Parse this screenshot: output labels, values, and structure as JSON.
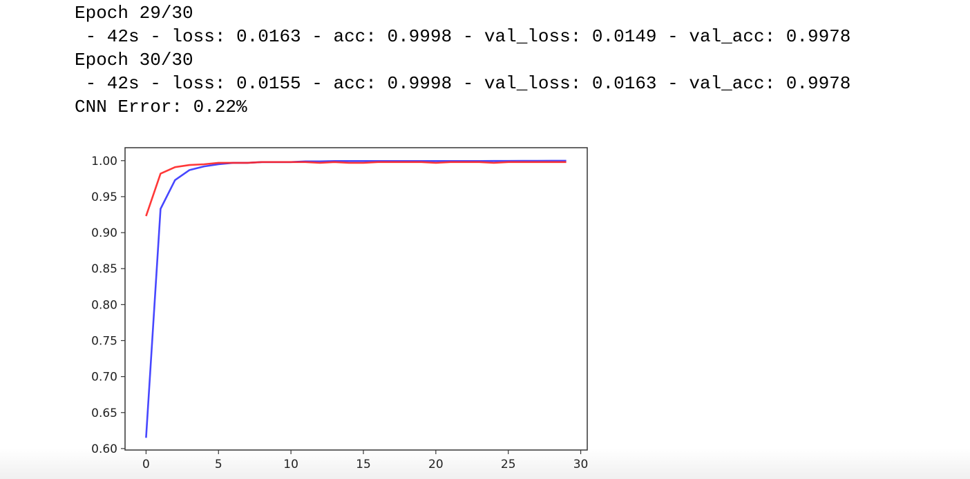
{
  "console": {
    "lines": [
      "Epoch 29/30",
      " - 42s - loss: 0.0163 - acc: 0.9998 - val_loss: 0.0149 - val_acc: 0.9978",
      "Epoch 30/30",
      " - 42s - loss: 0.0155 - acc: 0.9998 - val_loss: 0.0163 - val_acc: 0.9978",
      "CNN Error: 0.22%"
    ]
  },
  "chart_data": {
    "type": "line",
    "xlim": [
      -1.45,
      30.45
    ],
    "ylim": [
      0.598,
      1.018
    ],
    "xticks": [
      0,
      5,
      10,
      15,
      20,
      25,
      30
    ],
    "yticks": [
      0.6,
      0.65,
      0.7,
      0.75,
      0.8,
      0.85,
      0.9,
      0.95,
      1.0
    ],
    "ytick_labels": [
      "0.60",
      "0.65",
      "0.70",
      "0.75",
      "0.80",
      "0.85",
      "0.90",
      "0.95",
      "1.00"
    ],
    "grid": false,
    "series": [
      {
        "color": "#3333ff",
        "x": [
          0,
          1,
          2,
          3,
          4,
          5,
          6,
          7,
          8,
          9,
          10,
          11,
          12,
          13,
          14,
          15,
          16,
          17,
          18,
          19,
          20,
          21,
          22,
          23,
          24,
          25,
          26,
          27,
          28,
          29
        ],
        "values": [
          0.615,
          0.933,
          0.973,
          0.987,
          0.992,
          0.995,
          0.997,
          0.997,
          0.998,
          0.998,
          0.998,
          0.999,
          0.999,
          0.9995,
          0.9995,
          0.9995,
          0.9995,
          0.9995,
          0.9995,
          0.9995,
          0.9995,
          0.9995,
          0.9995,
          0.9995,
          0.9996,
          0.9996,
          0.9997,
          0.9997,
          0.9998,
          0.9998
        ]
      },
      {
        "color": "#ff2222",
        "x": [
          0,
          1,
          2,
          3,
          4,
          5,
          6,
          7,
          8,
          9,
          10,
          11,
          12,
          13,
          14,
          15,
          16,
          17,
          18,
          19,
          20,
          21,
          22,
          23,
          24,
          25,
          26,
          27,
          28,
          29
        ],
        "values": [
          0.923,
          0.982,
          0.991,
          0.994,
          0.995,
          0.997,
          0.997,
          0.997,
          0.998,
          0.998,
          0.998,
          0.998,
          0.997,
          0.998,
          0.997,
          0.997,
          0.998,
          0.998,
          0.998,
          0.998,
          0.997,
          0.998,
          0.998,
          0.998,
          0.997,
          0.998,
          0.998,
          0.998,
          0.998,
          0.998
        ]
      }
    ]
  }
}
